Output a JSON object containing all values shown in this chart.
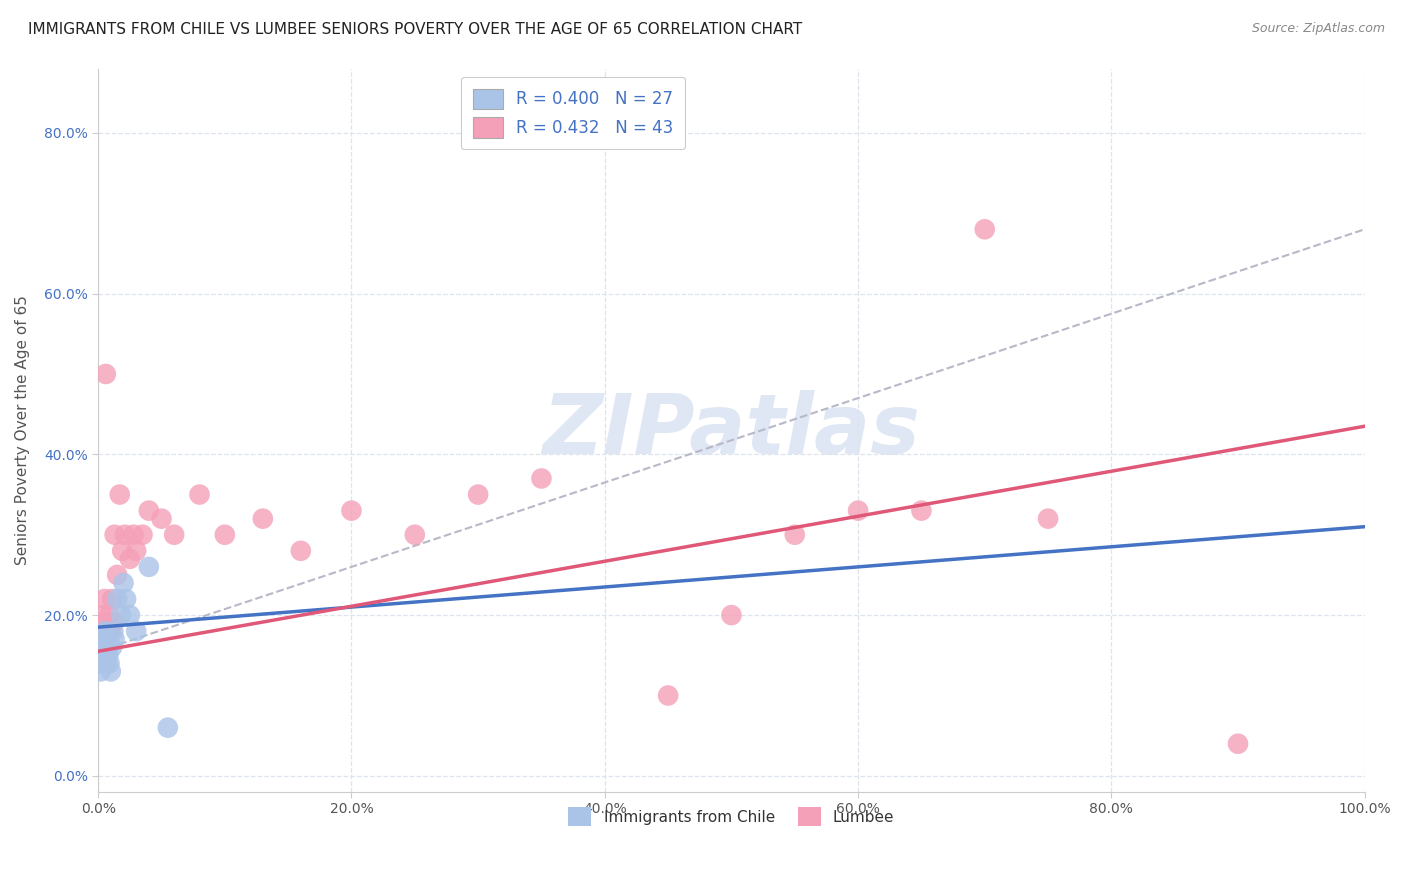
{
  "title": "IMMIGRANTS FROM CHILE VS LUMBEE SENIORS POVERTY OVER THE AGE OF 65 CORRELATION CHART",
  "source": "Source: ZipAtlas.com",
  "ylabel": "Seniors Poverty Over the Age of 65",
  "xlim": [
    0,
    1.0
  ],
  "ylim": [
    -0.02,
    0.88
  ],
  "xticks": [
    0.0,
    0.2,
    0.4,
    0.6,
    0.8,
    1.0
  ],
  "yticks": [
    0.0,
    0.2,
    0.4,
    0.6,
    0.8
  ],
  "xtick_labels": [
    "0.0%",
    "20.0%",
    "40.0%",
    "60.0%",
    "80.0%",
    "100.0%"
  ],
  "ytick_labels": [
    "0.0%",
    "20.0%",
    "40.0%",
    "60.0%",
    "80.0%"
  ],
  "chile_color": "#aac4e8",
  "lumbee_color": "#f4a0b8",
  "chile_line_color": "#4472c4",
  "lumbee_line_color": "#e05878",
  "dashed_line_color": "#b8b8c8",
  "legend_r_chile": "R = 0.400",
  "legend_n_chile": "N = 27",
  "legend_r_lumbee": "R = 0.432",
  "legend_n_lumbee": "N = 43",
  "chile_line_x0": 0.0,
  "chile_line_x1": 1.0,
  "chile_line_y0": 0.185,
  "chile_line_y1": 0.31,
  "lumbee_line_x0": 0.0,
  "lumbee_line_x1": 1.0,
  "lumbee_line_y0": 0.155,
  "lumbee_line_y1": 0.435,
  "dashed_line_x0": 0.0,
  "dashed_line_x1": 1.0,
  "dashed_line_y0": 0.155,
  "dashed_line_y1": 0.68,
  "chile_x": [
    0.001,
    0.002,
    0.002,
    0.003,
    0.003,
    0.004,
    0.004,
    0.005,
    0.005,
    0.006,
    0.006,
    0.007,
    0.007,
    0.008,
    0.009,
    0.01,
    0.011,
    0.012,
    0.013,
    0.015,
    0.018,
    0.02,
    0.022,
    0.025,
    0.03,
    0.04,
    0.055
  ],
  "chile_y": [
    0.14,
    0.13,
    0.16,
    0.15,
    0.14,
    0.17,
    0.15,
    0.16,
    0.18,
    0.15,
    0.17,
    0.16,
    0.14,
    0.15,
    0.14,
    0.13,
    0.16,
    0.18,
    0.17,
    0.22,
    0.2,
    0.24,
    0.22,
    0.2,
    0.18,
    0.26,
    0.06
  ],
  "lumbee_x": [
    0.001,
    0.002,
    0.002,
    0.003,
    0.003,
    0.004,
    0.005,
    0.005,
    0.006,
    0.007,
    0.008,
    0.009,
    0.01,
    0.011,
    0.012,
    0.013,
    0.015,
    0.017,
    0.019,
    0.021,
    0.025,
    0.028,
    0.03,
    0.035,
    0.04,
    0.05,
    0.06,
    0.08,
    0.1,
    0.13,
    0.16,
    0.2,
    0.25,
    0.3,
    0.35,
    0.45,
    0.5,
    0.55,
    0.6,
    0.65,
    0.7,
    0.75,
    0.9
  ],
  "lumbee_y": [
    0.15,
    0.18,
    0.14,
    0.2,
    0.17,
    0.16,
    0.19,
    0.22,
    0.5,
    0.18,
    0.16,
    0.2,
    0.18,
    0.22,
    0.19,
    0.3,
    0.25,
    0.35,
    0.28,
    0.3,
    0.27,
    0.3,
    0.28,
    0.3,
    0.33,
    0.32,
    0.3,
    0.35,
    0.3,
    0.32,
    0.28,
    0.33,
    0.3,
    0.35,
    0.37,
    0.1,
    0.2,
    0.3,
    0.33,
    0.33,
    0.68,
    0.32,
    0.04
  ],
  "background_color": "#ffffff",
  "grid_color": "#dde4ee",
  "title_fontsize": 11,
  "axis_label_fontsize": 11,
  "tick_fontsize": 10,
  "legend_fontsize": 12,
  "watermark_text": "ZIPatlas",
  "watermark_color": "#ccd8ee"
}
